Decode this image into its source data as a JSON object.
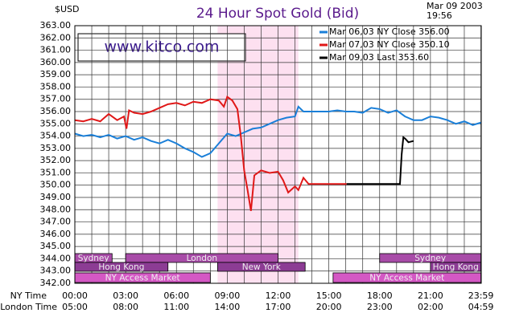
{
  "chart_data": {
    "type": "line",
    "title": "24 Hour Spot Gold (Bid)",
    "unit_label": "$USD",
    "date": "Mar 09 2003",
    "time": "19:56",
    "watermark": "www.kitco.com",
    "x_axis_labels": [
      "NY Time",
      "London Time"
    ],
    "xlim": [
      0,
      24
    ],
    "xticks": [
      {
        "value": 0,
        "label": "00:00"
      },
      {
        "value": 3,
        "label": "03:00"
      },
      {
        "value": 6,
        "label": "06:00"
      },
      {
        "value": 9,
        "label": "09:00"
      },
      {
        "value": 12,
        "label": "12:00"
      },
      {
        "value": 15,
        "label": "15:00"
      },
      {
        "value": 18,
        "label": "18:00"
      },
      {
        "value": 21,
        "label": "21:00"
      },
      {
        "value": 23.98,
        "label": "23:59"
      }
    ],
    "london_labels": [
      "05:00",
      "08:00",
      "11:00",
      "14:00",
      "17:00",
      "20:00",
      "23:00",
      "02:00",
      "04:59"
    ],
    "minor_xticks": [
      1,
      2,
      4,
      5,
      7,
      8,
      10,
      11,
      13,
      14,
      16,
      17,
      19,
      20,
      22,
      23
    ],
    "ylim": [
      342,
      363
    ],
    "yticks": [
      {
        "value": 342,
        "label": "342.00"
      },
      {
        "value": 343,
        "label": "343.00"
      },
      {
        "value": 344,
        "label": "344.00"
      },
      {
        "value": 345,
        "label": "345.00"
      },
      {
        "value": 346,
        "label": "346.00"
      },
      {
        "value": 347,
        "label": "347.00"
      },
      {
        "value": 348,
        "label": "348.00"
      },
      {
        "value": 349,
        "label": "349.00"
      },
      {
        "value": 350,
        "label": "350.00"
      },
      {
        "value": 351,
        "label": "351.00"
      },
      {
        "value": 352,
        "label": "352.00"
      },
      {
        "value": 353,
        "label": "353.00"
      },
      {
        "value": 354,
        "label": "354.00"
      },
      {
        "value": 355,
        "label": "355.00"
      },
      {
        "value": 356,
        "label": "356.00"
      },
      {
        "value": 357,
        "label": "357.00"
      },
      {
        "value": 358,
        "label": "358.00"
      },
      {
        "value": 359,
        "label": "359.00"
      },
      {
        "value": 360,
        "label": "360.00"
      },
      {
        "value": 361,
        "label": "361.00"
      },
      {
        "value": 362,
        "label": "362.00"
      },
      {
        "value": 363,
        "label": "363.00"
      }
    ],
    "grid": true,
    "highlight": [
      8.43,
      13.2
    ],
    "highlight_color": "#fde0f0",
    "series": [
      {
        "name": "Mar 06,03  NY Close 356.00",
        "color": "#1a7fd8",
        "x": [
          0,
          0.5,
          1,
          1.5,
          2,
          2.5,
          3,
          3.5,
          4,
          4.5,
          5,
          5.5,
          6,
          6.5,
          7,
          7.5,
          8,
          8.5,
          9,
          9.5,
          10,
          10.5,
          11,
          11.5,
          12,
          12.5,
          13,
          13.2,
          13.5,
          14,
          14.5,
          15,
          15.5,
          16,
          16.5,
          17,
          17.5,
          18,
          18.5,
          19,
          19.5,
          20,
          20.5,
          21,
          21.5,
          22,
          22.5,
          23,
          23.5,
          23.98
        ],
        "values": [
          354.2,
          354.0,
          354.1,
          353.9,
          354.1,
          353.8,
          354.0,
          353.7,
          353.9,
          353.6,
          353.4,
          353.7,
          353.4,
          353.0,
          352.7,
          352.3,
          352.6,
          353.4,
          354.2,
          354.0,
          354.3,
          354.6,
          354.7,
          355.0,
          355.3,
          355.5,
          355.6,
          356.4,
          356.0,
          356.0,
          356.0,
          356.0,
          356.1,
          356.0,
          356.0,
          355.9,
          356.3,
          356.2,
          355.9,
          356.1,
          355.6,
          355.3,
          355.3,
          355.6,
          355.5,
          355.3,
          355.0,
          355.2,
          354.9,
          355.1
        ]
      },
      {
        "name": "Mar 07,03  NY Close 350.10",
        "color": "#e01818",
        "x": [
          0,
          0.5,
          1,
          1.5,
          2,
          2.5,
          2.9,
          3.05,
          3.2,
          3.5,
          4,
          4.5,
          5,
          5.5,
          6,
          6.5,
          7,
          7.5,
          8,
          8.5,
          8.8,
          9,
          9.3,
          9.6,
          9.8,
          10,
          10.2,
          10.4,
          10.6,
          11,
          11.5,
          12,
          12.3,
          12.6,
          13,
          13.2,
          13.5,
          13.8,
          16.05
        ],
        "values": [
          355.3,
          355.2,
          355.4,
          355.2,
          355.8,
          355.3,
          355.6,
          354.6,
          356.1,
          355.9,
          355.8,
          356.0,
          356.3,
          356.6,
          356.7,
          356.5,
          356.8,
          356.7,
          357.0,
          356.9,
          356.4,
          357.2,
          356.9,
          356.2,
          354.0,
          351.2,
          349.6,
          347.9,
          350.8,
          351.2,
          351.0,
          351.1,
          350.4,
          349.4,
          349.9,
          349.6,
          350.6,
          350.1,
          350.1
        ]
      },
      {
        "name": "Mar 09,03  Last 353.60",
        "color": "#000000",
        "x": [
          16.05,
          19.2,
          19.3,
          19.4,
          19.5,
          19.7,
          20.0
        ],
        "values": [
          350.1,
          350.1,
          352.5,
          353.9,
          353.8,
          353.5,
          353.6
        ]
      }
    ],
    "sessions": [
      {
        "name": "Sydney",
        "row": 0,
        "start": 0,
        "end": 2.2,
        "color": "#a84ca8"
      },
      {
        "name": "London",
        "row": 0,
        "start": 3,
        "end": 12,
        "color": "#a84ca8"
      },
      {
        "name": "Sydney",
        "row": 0,
        "start": 18,
        "end": 23.98,
        "color": "#a84ca8"
      },
      {
        "name": "Hong Kong",
        "row": 1,
        "start": 0,
        "end": 5.5,
        "color": "#8c3c94"
      },
      {
        "name": "New York",
        "row": 1,
        "start": 8.43,
        "end": 13.6,
        "color": "#8c3c94"
      },
      {
        "name": "Hong Kong",
        "row": 1,
        "start": 21,
        "end": 23.98,
        "color": "#8c3c94"
      },
      {
        "name": "NY Access Market",
        "row": 2,
        "start": 0,
        "end": 8,
        "color": "#d458c4"
      },
      {
        "name": "NY Access Market",
        "row": 2,
        "start": 15.25,
        "end": 23.98,
        "color": "#d458c4"
      }
    ]
  }
}
